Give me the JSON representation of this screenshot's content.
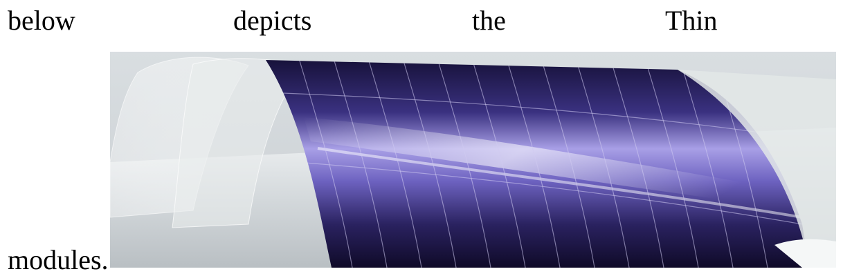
{
  "text": {
    "line1": [
      "below",
      "depicts",
      "the",
      "Thin"
    ],
    "line2_start": "modules."
  },
  "figure": {
    "subject": "flexible thin-film solar module rolled over a cylinder",
    "colors": {
      "background": "#d7dcdf",
      "cell_dark": "#1a1440",
      "cell_mid": "#5a4fa8",
      "cell_light": "#9d94e0",
      "substrate": "#e6e9ea"
    }
  }
}
